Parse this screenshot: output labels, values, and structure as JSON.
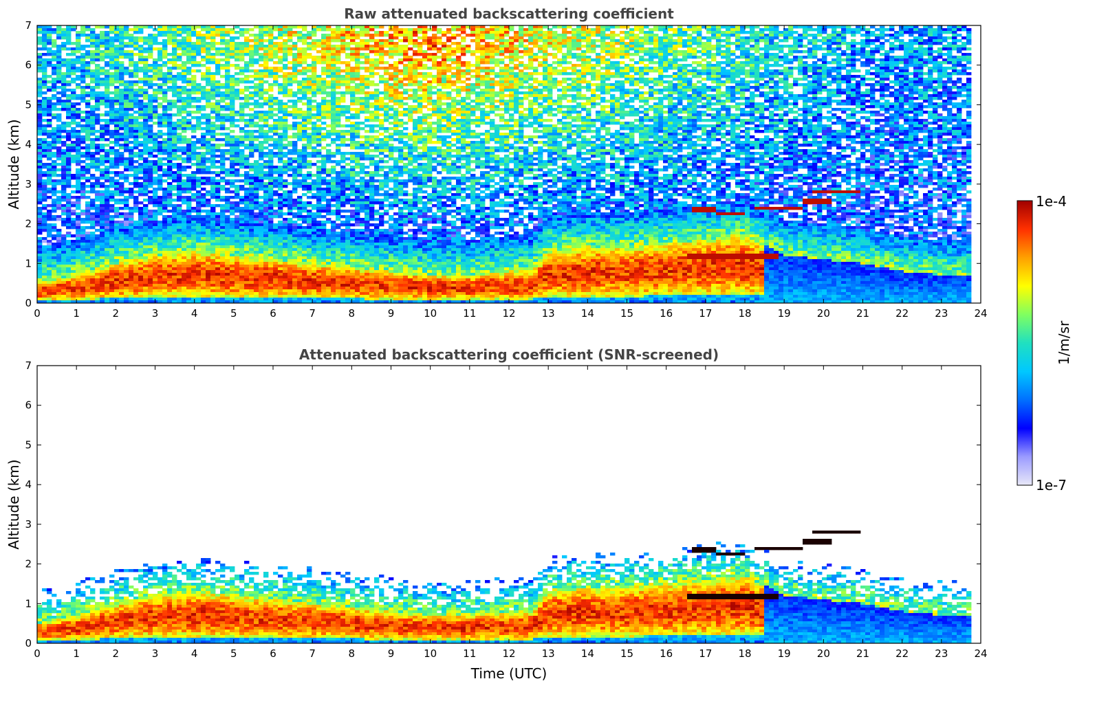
{
  "chart_data": [
    {
      "type": "heatmap",
      "title": "Raw attenuated backscattering coefficient",
      "xlabel": "",
      "ylabel": "Altitude (km)",
      "xlim": [
        0,
        24
      ],
      "ylim": [
        0,
        7
      ],
      "xticks": [
        "0",
        "1",
        "2",
        "3",
        "4",
        "5",
        "6",
        "7",
        "8",
        "9",
        "10",
        "11",
        "12",
        "13",
        "14",
        "15",
        "16",
        "17",
        "18",
        "19",
        "20",
        "21",
        "22",
        "23",
        "24"
      ],
      "yticks": [
        "0",
        "1",
        "2",
        "3",
        "4",
        "5",
        "6",
        "7"
      ],
      "screened": false,
      "features": {
        "boundary_layer_top_km": [
          [
            0,
            0.5
          ],
          [
            1,
            0.7
          ],
          [
            2,
            1.0
          ],
          [
            3,
            1.2
          ],
          [
            4,
            1.3
          ],
          [
            5,
            1.2
          ],
          [
            6,
            1.1
          ],
          [
            7,
            1.0
          ],
          [
            8,
            0.9
          ],
          [
            9,
            0.8
          ],
          [
            10,
            0.7
          ],
          [
            11,
            0.7
          ],
          [
            12,
            0.8
          ],
          [
            12.6,
            0.8
          ],
          [
            13,
            1.3
          ],
          [
            14,
            1.4
          ],
          [
            15,
            1.4
          ],
          [
            16,
            1.5
          ],
          [
            17,
            1.6
          ],
          [
            18,
            1.7
          ],
          [
            19,
            1.2
          ],
          [
            20,
            1.1
          ],
          [
            21,
            1.0
          ],
          [
            22,
            0.8
          ],
          [
            23,
            0.7
          ],
          [
            23.8,
            0.7
          ]
        ],
        "cloud_layers": [
          {
            "x_start": 16.7,
            "x_end": 17.3,
            "altitude_km": 2.35
          },
          {
            "x_start": 17.3,
            "x_end": 18.0,
            "altitude_km": 2.25
          },
          {
            "x_start": 18.3,
            "x_end": 19.5,
            "altitude_km": 2.4
          },
          {
            "x_start": 19.5,
            "x_end": 20.2,
            "altitude_km": 2.55
          },
          {
            "x_start": 19.7,
            "x_end": 20.9,
            "altitude_km": 2.8
          },
          {
            "x_start": 16.5,
            "x_end": 18.8,
            "altitude_km": 1.2
          }
        ]
      }
    },
    {
      "type": "heatmap",
      "title": "Attenuated backscattering coefficient (SNR-screened)",
      "xlabel": "Time (UTC)",
      "ylabel": "Altitude (km)",
      "xlim": [
        0,
        24
      ],
      "ylim": [
        0,
        7
      ],
      "xticks": [
        "0",
        "1",
        "2",
        "3",
        "4",
        "5",
        "6",
        "7",
        "8",
        "9",
        "10",
        "11",
        "12",
        "13",
        "14",
        "15",
        "16",
        "17",
        "18",
        "19",
        "20",
        "21",
        "22",
        "23",
        "24"
      ],
      "yticks": [
        "0",
        "1",
        "2",
        "3",
        "4",
        "5",
        "6",
        "7"
      ],
      "screened": true
    }
  ],
  "colorbar": {
    "label": "1/m/sr",
    "max_label": "1e-4",
    "min_label": "1e-7",
    "scale": "log",
    "colors": [
      "#e8e8f8",
      "#9b9bff",
      "#0000ff",
      "#0070ff",
      "#00c8ff",
      "#20e0c0",
      "#80ff60",
      "#ffff00",
      "#ffa000",
      "#ff3000",
      "#a00000"
    ]
  }
}
